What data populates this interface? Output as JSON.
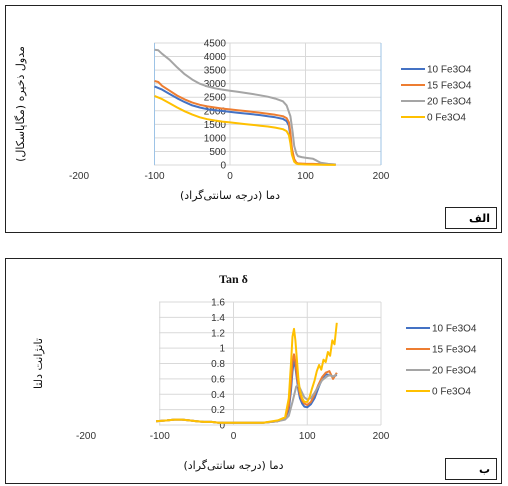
{
  "chart_data": [
    {
      "type": "line",
      "title": "",
      "xlabel": "دما (درجه سانتی‌گراد)",
      "ylabel": "مدول ذخیره (مگاپاسکال)",
      "xlim": [
        -200,
        200
      ],
      "ylim": [
        0,
        4500
      ],
      "xticks": [
        "-200",
        "-100",
        "0",
        "100",
        "200"
      ],
      "yticks": [
        "0",
        "500",
        "1000",
        "1500",
        "2000",
        "2500",
        "3000",
        "3500",
        "4000",
        "4500"
      ],
      "legend_position": "right",
      "panel_tag": "الف",
      "series": [
        {
          "name": "10 Fe3O4",
          "color": "#4472C4",
          "x": [
            -100,
            -90,
            -80,
            -70,
            -60,
            -50,
            -40,
            -30,
            -20,
            -10,
            0,
            10,
            20,
            30,
            40,
            50,
            60,
            70,
            75,
            78,
            80,
            82,
            85,
            88,
            90,
            95,
            100,
            110,
            120,
            130,
            140
          ],
          "y": [
            2900,
            2780,
            2620,
            2460,
            2320,
            2200,
            2120,
            2060,
            2020,
            1990,
            1960,
            1930,
            1900,
            1870,
            1840,
            1800,
            1760,
            1700,
            1620,
            1450,
            1050,
            500,
            160,
            70,
            50,
            40,
            35,
            30,
            25,
            20,
            15
          ]
        },
        {
          "name": "15 Fe3O4",
          "color": "#ED7D31",
          "x": [
            -100,
            -95,
            -90,
            -80,
            -70,
            -60,
            -50,
            -40,
            -30,
            -20,
            -10,
            0,
            10,
            20,
            30,
            40,
            50,
            60,
            70,
            75,
            78,
            80,
            82,
            85,
            88,
            90,
            95,
            100,
            110,
            120,
            130,
            140
          ],
          "y": [
            3100,
            3060,
            2920,
            2740,
            2560,
            2420,
            2300,
            2220,
            2160,
            2120,
            2080,
            2050,
            2020,
            1990,
            1960,
            1930,
            1890,
            1850,
            1800,
            1730,
            1580,
            1200,
            620,
            220,
            90,
            60,
            50,
            45,
            40,
            30,
            25,
            20
          ]
        },
        {
          "name": "20 Fe3O4",
          "color": "#A5A5A5",
          "x": [
            -100,
            -95,
            -90,
            -80,
            -70,
            -60,
            -50,
            -40,
            -30,
            -20,
            -10,
            0,
            10,
            20,
            30,
            40,
            50,
            60,
            70,
            75,
            80,
            83,
            85,
            88,
            90,
            95,
            100,
            105,
            110,
            115,
            120,
            130,
            140
          ],
          "y": [
            4250,
            4230,
            4100,
            3880,
            3600,
            3350,
            3150,
            3000,
            2900,
            2830,
            2780,
            2740,
            2700,
            2660,
            2620,
            2570,
            2520,
            2450,
            2350,
            2200,
            1800,
            1200,
            700,
            420,
            330,
            290,
            270,
            250,
            230,
            160,
            80,
            40,
            20
          ]
        },
        {
          "name": "0 Fe3O4",
          "color": "#FFC000",
          "x": [
            -100,
            -90,
            -80,
            -70,
            -60,
            -50,
            -40,
            -30,
            -20,
            -10,
            0,
            10,
            20,
            30,
            40,
            50,
            60,
            70,
            75,
            78,
            80,
            82,
            85,
            88,
            90,
            95,
            100,
            110,
            120,
            130,
            140
          ],
          "y": [
            2550,
            2430,
            2280,
            2120,
            1980,
            1860,
            1760,
            1690,
            1640,
            1600,
            1570,
            1540,
            1510,
            1480,
            1450,
            1420,
            1380,
            1320,
            1250,
            1100,
            800,
            380,
            120,
            50,
            35,
            25,
            20,
            15,
            10,
            5,
            3
          ]
        }
      ]
    },
    {
      "type": "line",
      "title": "Tan δ",
      "xlabel": "دما (درجه سانتی‌گراد)",
      "ylabel": "تانژانت دلتا",
      "xlim": [
        -200,
        200
      ],
      "ylim": [
        0,
        1.6
      ],
      "xticks": [
        "-200",
        "-100",
        "0",
        "100",
        "200"
      ],
      "yticks": [
        "0",
        "0.2",
        "0.4",
        "0.6",
        "0.8",
        "1",
        "1.2",
        "1.4",
        "1.6"
      ],
      "legend_position": "right",
      "panel_tag": "ب",
      "series": [
        {
          "name": "10 Fe3O4",
          "color": "#4472C4",
          "x": [
            -105,
            -90,
            -80,
            -70,
            -60,
            -50,
            -40,
            -30,
            -20,
            -10,
            0,
            20,
            40,
            60,
            70,
            75,
            78,
            80,
            82,
            84,
            86,
            88,
            90,
            93,
            96,
            100,
            105,
            110,
            115,
            120,
            125,
            130,
            135,
            140
          ],
          "y": [
            0.05,
            0.06,
            0.07,
            0.07,
            0.06,
            0.05,
            0.04,
            0.04,
            0.03,
            0.03,
            0.03,
            0.03,
            0.03,
            0.05,
            0.08,
            0.2,
            0.45,
            0.7,
            0.85,
            0.75,
            0.6,
            0.45,
            0.35,
            0.28,
            0.24,
            0.23,
            0.27,
            0.35,
            0.48,
            0.6,
            0.66,
            0.65,
            0.63,
            0.65
          ]
        },
        {
          "name": "15 Fe3O4",
          "color": "#ED7D31",
          "x": [
            -105,
            -90,
            -80,
            -70,
            -60,
            -50,
            -40,
            -30,
            -20,
            -10,
            0,
            20,
            40,
            60,
            70,
            75,
            78,
            80,
            82,
            84,
            86,
            88,
            90,
            93,
            96,
            100,
            105,
            110,
            115,
            120,
            125,
            130,
            135,
            140
          ],
          "y": [
            0.05,
            0.06,
            0.07,
            0.07,
            0.06,
            0.05,
            0.04,
            0.04,
            0.03,
            0.03,
            0.03,
            0.03,
            0.03,
            0.05,
            0.08,
            0.25,
            0.55,
            0.82,
            0.92,
            0.82,
            0.65,
            0.5,
            0.4,
            0.32,
            0.28,
            0.26,
            0.3,
            0.4,
            0.52,
            0.62,
            0.68,
            0.7,
            0.6,
            0.68
          ]
        },
        {
          "name": "20 Fe3O4",
          "color": "#A5A5A5",
          "x": [
            -105,
            -90,
            -80,
            -70,
            -60,
            -50,
            -40,
            -30,
            -20,
            -10,
            0,
            20,
            40,
            60,
            70,
            75,
            80,
            85,
            88,
            90,
            93,
            96,
            100,
            105,
            110,
            115,
            120,
            125,
            130,
            135,
            140
          ],
          "y": [
            0.05,
            0.06,
            0.07,
            0.07,
            0.06,
            0.05,
            0.04,
            0.04,
            0.03,
            0.03,
            0.03,
            0.03,
            0.03,
            0.05,
            0.07,
            0.12,
            0.3,
            0.5,
            0.52,
            0.48,
            0.42,
            0.36,
            0.33,
            0.35,
            0.42,
            0.5,
            0.58,
            0.62,
            0.65,
            0.63,
            0.66
          ]
        },
        {
          "name": "0 Fe3O4",
          "color": "#FFC000",
          "x": [
            -105,
            -90,
            -80,
            -70,
            -60,
            -50,
            -40,
            -30,
            -20,
            -10,
            0,
            20,
            40,
            60,
            70,
            75,
            78,
            80,
            82,
            84,
            86,
            88,
            90,
            93,
            96,
            100,
            103,
            106,
            110,
            113,
            116,
            119,
            122,
            125,
            128,
            131,
            134,
            137,
            140
          ],
          "y": [
            0.05,
            0.06,
            0.07,
            0.07,
            0.06,
            0.05,
            0.04,
            0.04,
            0.03,
            0.03,
            0.03,
            0.03,
            0.03,
            0.06,
            0.1,
            0.35,
            0.8,
            1.15,
            1.25,
            1.1,
            0.85,
            0.6,
            0.45,
            0.35,
            0.3,
            0.3,
            0.36,
            0.46,
            0.58,
            0.7,
            0.78,
            0.72,
            0.85,
            0.82,
            0.95,
            0.9,
            1.1,
            1.05,
            1.33
          ]
        }
      ]
    }
  ]
}
